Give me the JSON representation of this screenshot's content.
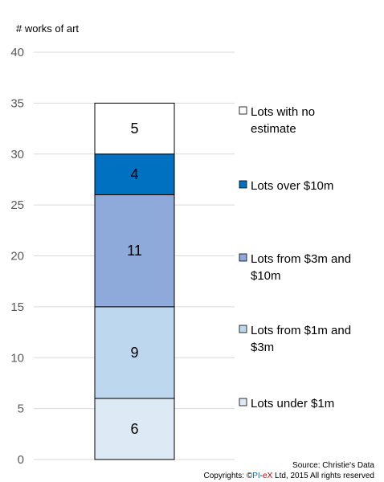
{
  "chart_data": {
    "type": "bar",
    "stacked": true,
    "ylabel": "# works of art",
    "ylim": [
      0,
      40
    ],
    "yticks": [
      0,
      5,
      10,
      15,
      20,
      25,
      30,
      35,
      40
    ],
    "grid": true,
    "legend_position": "right",
    "series": [
      {
        "name": "Lots under $1m",
        "value": 6,
        "color": "#dde9f5",
        "legend_lines": [
          "Lots under $1m"
        ]
      },
      {
        "name": "Lots from $1m and $3m",
        "value": 9,
        "color": "#bdd7ee",
        "legend_lines": [
          "Lots from $1m and",
          "$3m"
        ]
      },
      {
        "name": "Lots from $3m and $10m",
        "value": 11,
        "color": "#8eaadb",
        "legend_lines": [
          "Lots from $3m and",
          "$10m"
        ]
      },
      {
        "name": "Lots over $10m",
        "value": 4,
        "color": "#0070c0",
        "legend_lines": [
          "Lots over $10m"
        ]
      },
      {
        "name": "Lots with no estimate",
        "value": 5,
        "color": "#ffffff",
        "legend_lines": [
          "Lots with no",
          "estimate"
        ]
      }
    ]
  },
  "footer": {
    "source": "Source: Christie's Data",
    "copyright_prefix": "Copyrights: ©",
    "copyright_pi": "PI",
    "copyright_dash": "-",
    "copyright_ex": "eX",
    "copyright_suffix": " Ltd, 2015 All rights reserved",
    "pi_color": "#0070c0",
    "ex_color": "#c00000"
  }
}
